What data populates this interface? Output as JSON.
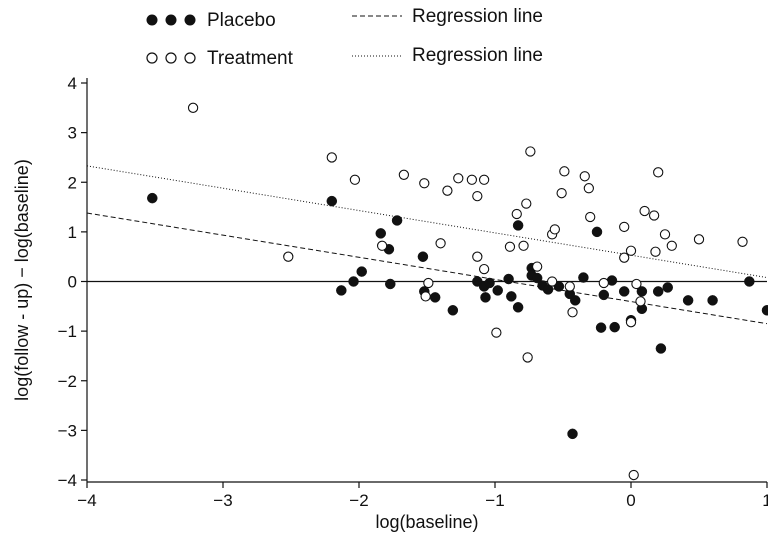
{
  "chart_data": {
    "type": "scatter",
    "xlabel": "log(baseline)",
    "ylabel": "log(follow - up) − log(baseline)",
    "xlim": [
      -4,
      1
    ],
    "ylim": [
      -4,
      4
    ],
    "x_ticks": [
      -4,
      -3,
      -2,
      -1,
      0,
      1
    ],
    "x_tick_labels": [
      "−4",
      "−3",
      "−2",
      "−1",
      "0",
      "1"
    ],
    "y_ticks": [
      -4,
      -3,
      -2,
      -1,
      0,
      1,
      2,
      3,
      4
    ],
    "y_tick_labels": [
      "−4",
      "−3",
      "−2",
      "−1",
      "0",
      "1",
      "2",
      "3",
      "4"
    ],
    "reference_line_y": 0,
    "legend": [
      {
        "label": "Placebo",
        "marker": "filled-circle",
        "symbol": "● ● ●"
      },
      {
        "label": "Treatment",
        "marker": "open-circle",
        "symbol": "○ ○ ○"
      },
      {
        "label": "Regression line",
        "style": "dashed"
      },
      {
        "label": "Regression line",
        "style": "dotted"
      }
    ],
    "series": [
      {
        "name": "Placebo",
        "marker": "filled",
        "color": "#111111",
        "points": [
          [
            -3.52,
            1.68
          ],
          [
            -2.2,
            1.62
          ],
          [
            -2.13,
            -0.18
          ],
          [
            -2.04,
            0.0
          ],
          [
            -1.98,
            0.2
          ],
          [
            -1.84,
            0.97
          ],
          [
            -1.78,
            0.65
          ],
          [
            -1.72,
            1.23
          ],
          [
            -1.77,
            -0.05
          ],
          [
            -1.53,
            0.5
          ],
          [
            -1.52,
            -0.2
          ],
          [
            -1.44,
            -0.32
          ],
          [
            -1.31,
            -0.58
          ],
          [
            -1.13,
            0.0
          ],
          [
            -1.08,
            -0.1
          ],
          [
            -1.07,
            -0.32
          ],
          [
            -1.04,
            -0.03
          ],
          [
            -0.98,
            -0.18
          ],
          [
            -0.9,
            0.05
          ],
          [
            -0.88,
            -0.3
          ],
          [
            -0.83,
            -0.52
          ],
          [
            -0.83,
            1.13
          ],
          [
            -0.73,
            0.27
          ],
          [
            -0.73,
            0.12
          ],
          [
            -0.69,
            0.07
          ],
          [
            -0.65,
            -0.08
          ],
          [
            -0.61,
            -0.16
          ],
          [
            -0.53,
            -0.1
          ],
          [
            -0.45,
            -0.25
          ],
          [
            -0.43,
            -3.07
          ],
          [
            -0.41,
            -0.38
          ],
          [
            -0.35,
            0.08
          ],
          [
            -0.25,
            1.0
          ],
          [
            -0.22,
            -0.93
          ],
          [
            -0.2,
            -0.27
          ],
          [
            -0.14,
            0.02
          ],
          [
            -0.12,
            -0.92
          ],
          [
            -0.05,
            -0.2
          ],
          [
            0.0,
            -0.78
          ],
          [
            0.08,
            -0.55
          ],
          [
            0.08,
            -0.2
          ],
          [
            0.2,
            -0.2
          ],
          [
            0.22,
            -1.35
          ],
          [
            0.27,
            -0.12
          ],
          [
            0.42,
            -0.38
          ],
          [
            0.6,
            -0.38
          ],
          [
            0.87,
            0.0
          ],
          [
            1.0,
            -0.58
          ]
        ]
      },
      {
        "name": "Treatment",
        "marker": "open",
        "color": "#111111",
        "points": [
          [
            -3.22,
            3.5
          ],
          [
            -2.52,
            0.5
          ],
          [
            -2.2,
            2.5
          ],
          [
            -2.03,
            2.05
          ],
          [
            -1.83,
            0.72
          ],
          [
            -1.67,
            2.15
          ],
          [
            -1.52,
            1.98
          ],
          [
            -1.51,
            -0.3
          ],
          [
            -1.49,
            -0.03
          ],
          [
            -1.4,
            0.77
          ],
          [
            -1.35,
            1.83
          ],
          [
            -1.27,
            2.08
          ],
          [
            -1.17,
            2.05
          ],
          [
            -1.13,
            1.72
          ],
          [
            -1.08,
            2.05
          ],
          [
            -1.08,
            0.25
          ],
          [
            -1.13,
            0.5
          ],
          [
            -0.99,
            -1.03
          ],
          [
            -0.89,
            0.7
          ],
          [
            -0.84,
            1.36
          ],
          [
            -0.79,
            0.72
          ],
          [
            -0.77,
            1.57
          ],
          [
            -0.74,
            2.62
          ],
          [
            -0.76,
            -1.53
          ],
          [
            -0.69,
            0.3
          ],
          [
            -0.58,
            0.95
          ],
          [
            -0.56,
            1.05
          ],
          [
            -0.58,
            0.0
          ],
          [
            -0.51,
            1.78
          ],
          [
            -0.49,
            2.22
          ],
          [
            -0.45,
            -0.1
          ],
          [
            -0.43,
            -0.62
          ],
          [
            -0.34,
            2.12
          ],
          [
            -0.3,
            1.3
          ],
          [
            -0.31,
            1.88
          ],
          [
            -0.2,
            -0.03
          ],
          [
            -0.05,
            1.1
          ],
          [
            -0.05,
            0.48
          ],
          [
            0.0,
            -0.82
          ],
          [
            0.0,
            0.62
          ],
          [
            0.04,
            -0.05
          ],
          [
            0.07,
            -0.4
          ],
          [
            0.1,
            1.42
          ],
          [
            0.17,
            1.33
          ],
          [
            0.18,
            0.6
          ],
          [
            0.2,
            2.2
          ],
          [
            0.25,
            0.95
          ],
          [
            0.3,
            0.72
          ],
          [
            0.5,
            0.85
          ],
          [
            0.82,
            0.8
          ],
          [
            0.02,
            -3.9
          ]
        ]
      }
    ],
    "regression_lines": [
      {
        "style": "dashed",
        "points": [
          [
            -4,
            1.38
          ],
          [
            1,
            -0.85
          ]
        ]
      },
      {
        "style": "dotted",
        "points": [
          [
            -4,
            2.33
          ],
          [
            1,
            0.08
          ]
        ]
      }
    ]
  }
}
